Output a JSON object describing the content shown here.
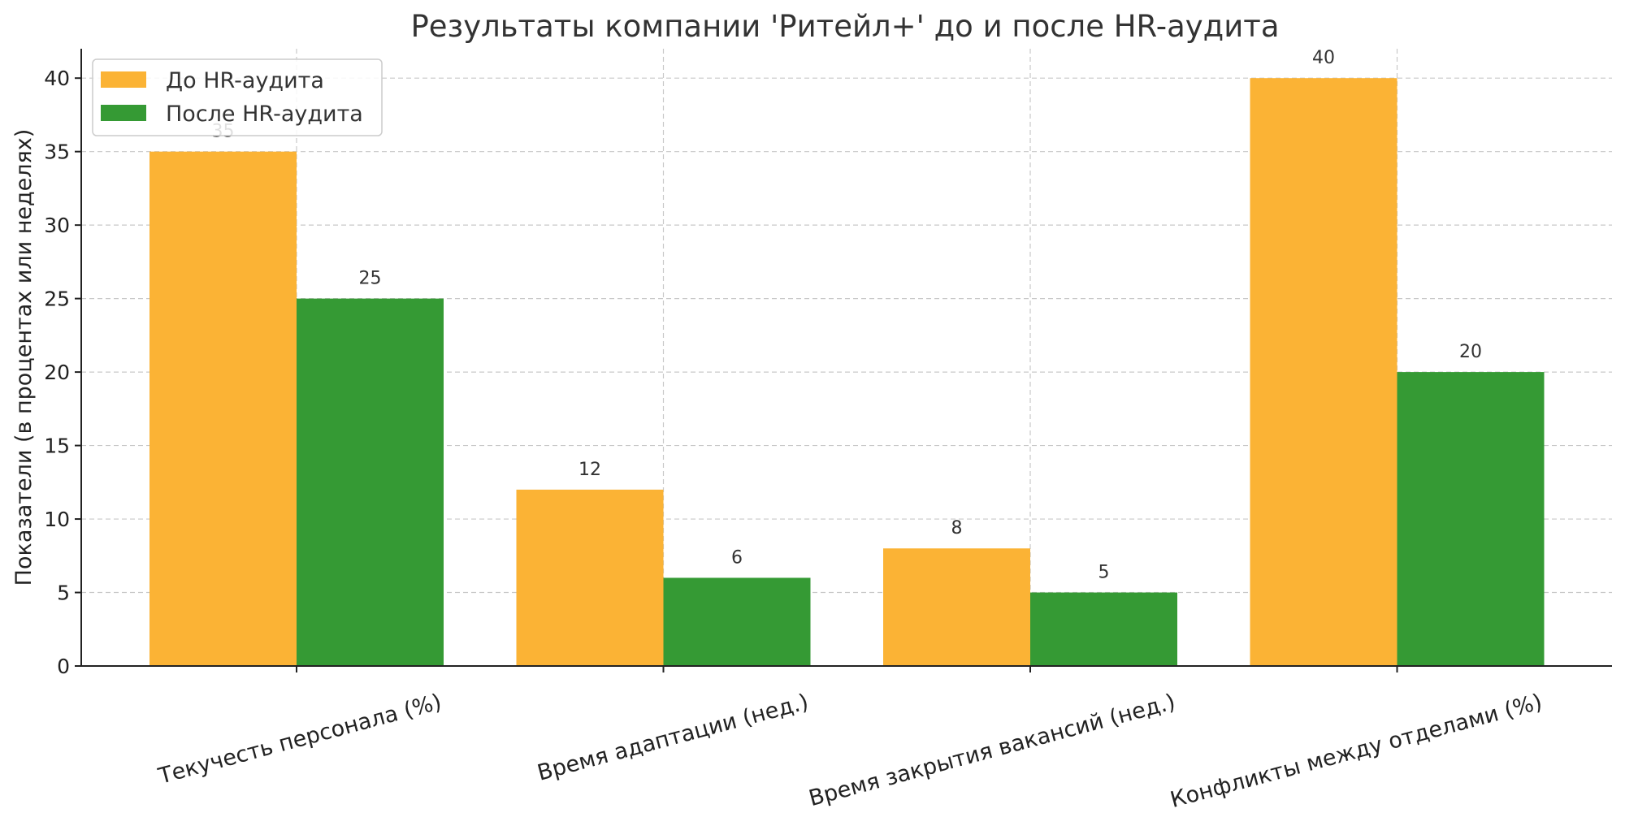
{
  "chart_data": {
    "type": "bar",
    "title": "Результаты компании 'Ритейл+' до и после HR-аудита",
    "xlabel": "",
    "ylabel": "Показатели (в процентах или неделях)",
    "categories": [
      "Текучесть персонала (%)",
      "Время адаптации (нед.)",
      "Время закрытия вакансий (нед.)",
      "Конфликты между отделами (%)"
    ],
    "series": [
      {
        "name": "До HR-аудита",
        "values": [
          35,
          12,
          8,
          40
        ],
        "color": "#FBB335"
      },
      {
        "name": "После HR-аудита",
        "values": [
          25,
          6,
          5,
          20
        ],
        "color": "#359A34"
      }
    ],
    "ylim": [
      0,
      42
    ],
    "yticks": [
      0,
      5,
      10,
      15,
      20,
      25,
      30,
      35,
      40
    ],
    "grid": true,
    "legend": "top-left"
  }
}
